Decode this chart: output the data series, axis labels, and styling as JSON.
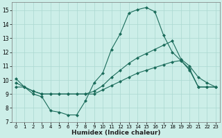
{
  "xlabel": "Humidex (Indice chaleur)",
  "background_color": "#cceee8",
  "grid_color": "#aad8d0",
  "line_color": "#1a6b5a",
  "xlim": [
    -0.5,
    23.5
  ],
  "ylim": [
    7,
    15.6
  ],
  "yticks": [
    7,
    8,
    9,
    10,
    11,
    12,
    13,
    14,
    15
  ],
  "xticks": [
    0,
    1,
    2,
    3,
    4,
    5,
    6,
    7,
    8,
    9,
    10,
    11,
    12,
    13,
    14,
    15,
    16,
    17,
    18,
    19,
    20,
    21,
    22,
    23
  ],
  "line1_x": [
    0,
    1,
    2,
    3,
    4,
    5,
    6,
    7,
    8,
    9,
    10,
    11,
    12,
    13,
    14,
    15,
    16,
    17,
    18,
    19,
    20,
    21,
    22,
    23
  ],
  "line1_y": [
    10.1,
    9.5,
    9.0,
    8.8,
    7.8,
    7.7,
    7.5,
    7.5,
    8.5,
    9.8,
    10.5,
    12.2,
    13.3,
    14.8,
    15.05,
    15.2,
    14.9,
    13.2,
    12.0,
    11.4,
    10.7,
    9.5,
    9.5,
    9.5
  ],
  "line2_x": [
    0,
    1,
    2,
    3,
    4,
    5,
    6,
    7,
    8,
    9,
    10,
    11,
    12,
    13,
    14,
    15,
    16,
    17,
    18,
    19,
    20,
    21,
    22,
    23
  ],
  "line2_y": [
    9.5,
    9.5,
    9.2,
    9.0,
    9.0,
    9.0,
    9.0,
    9.0,
    9.0,
    9.0,
    9.3,
    9.6,
    9.9,
    10.2,
    10.5,
    10.7,
    10.9,
    11.1,
    11.3,
    11.4,
    10.8,
    9.5,
    9.5,
    9.5
  ],
  "line3_x": [
    0,
    1,
    2,
    3,
    4,
    5,
    6,
    7,
    8,
    9,
    10,
    11,
    12,
    13,
    14,
    15,
    16,
    17,
    18,
    19,
    20,
    21,
    22,
    23
  ],
  "line3_y": [
    9.8,
    9.5,
    9.2,
    9.0,
    9.0,
    9.0,
    9.0,
    9.0,
    9.0,
    9.2,
    9.6,
    10.2,
    10.7,
    11.2,
    11.6,
    11.9,
    12.2,
    12.5,
    12.8,
    11.5,
    11.0,
    10.2,
    9.8,
    9.5
  ]
}
